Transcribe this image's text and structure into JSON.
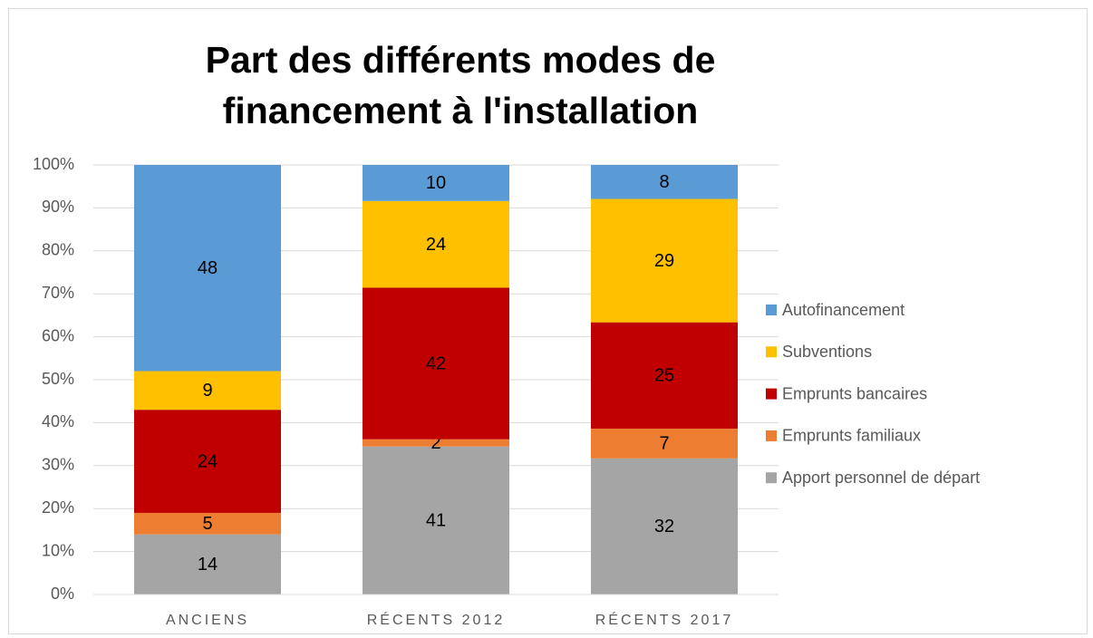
{
  "chart_data": {
    "type": "bar",
    "stacking": "percent",
    "title": "Part des différents modes de financement à l'installation",
    "categories": [
      "ANCIENS",
      "RÉCENTS 2012",
      "RÉCENTS 2017"
    ],
    "series": [
      {
        "name": "Apport personnel de départ",
        "color": "#a5a5a5",
        "values": [
          14,
          41,
          32
        ]
      },
      {
        "name": "Emprunts familiaux",
        "color": "#ed7d31",
        "values": [
          5,
          2,
          7
        ]
      },
      {
        "name": "Emprunts bancaires",
        "color": "#c00000",
        "values": [
          24,
          42,
          25
        ]
      },
      {
        "name": "Subventions",
        "color": "#ffc000",
        "values": [
          9,
          24,
          29
        ]
      },
      {
        "name": "Autofinancement",
        "color": "#5b9bd5",
        "values": [
          48,
          10,
          8
        ]
      }
    ],
    "ylim": [
      0,
      100
    ],
    "yticks": [
      {
        "value": 0,
        "label": "0%"
      },
      {
        "value": 10,
        "label": "10%"
      },
      {
        "value": 20,
        "label": "20%"
      },
      {
        "value": 30,
        "label": "30%"
      },
      {
        "value": 40,
        "label": "40%"
      },
      {
        "value": 50,
        "label": "50%"
      },
      {
        "value": 60,
        "label": "60%"
      },
      {
        "value": 70,
        "label": "70%"
      },
      {
        "value": 80,
        "label": "80%"
      },
      {
        "value": 90,
        "label": "90%"
      },
      {
        "value": 100,
        "label": "100%"
      }
    ],
    "grid": true,
    "legend": "right"
  }
}
